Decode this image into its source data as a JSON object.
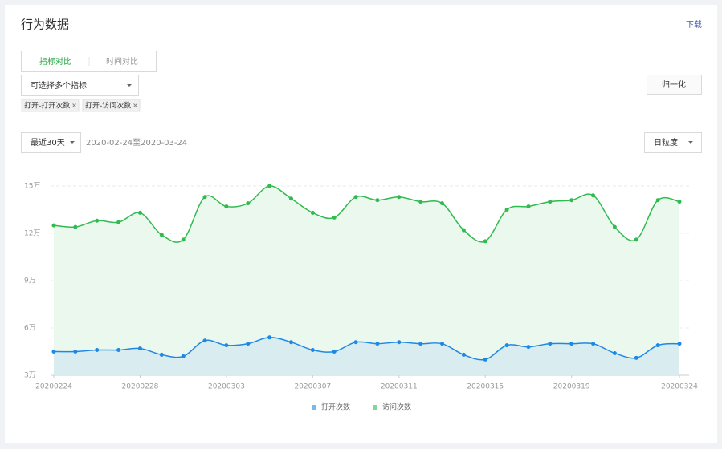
{
  "header": {
    "title": "行为数据",
    "download": "下载"
  },
  "tabs": [
    "指标对比",
    "时间对比"
  ],
  "metric_select": {
    "placeholder": "可选择多个指标",
    "tags": [
      "打开-打开次数",
      "打开-访问次数"
    ]
  },
  "normalize_button": "归一化",
  "range_select": "最近30天",
  "date_range": "2020-02-24至2020-03-24",
  "granularity_select": "日粒度",
  "chart_data": {
    "type": "line",
    "categories": [
      "20200224",
      null,
      null,
      null,
      "20200228",
      null,
      null,
      null,
      "20200303",
      null,
      null,
      null,
      "20200307",
      null,
      null,
      null,
      "20200311",
      null,
      null,
      null,
      "20200315",
      null,
      null,
      null,
      "20200319",
      null,
      null,
      null,
      null,
      "20200324"
    ],
    "series": [
      {
        "name": "打开次数",
        "color": "#1e88e5",
        "fill": "#d9edf0",
        "values": [
          4.5,
          4.5,
          4.6,
          4.6,
          4.7,
          4.3,
          4.2,
          5.2,
          4.9,
          5.0,
          5.4,
          5.1,
          4.6,
          4.5,
          5.1,
          5.0,
          5.1,
          5.0,
          5.0,
          4.3,
          4.0,
          4.9,
          4.8,
          5.0,
          5.0,
          5.0,
          4.4,
          4.1,
          4.9,
          5.0
        ]
      },
      {
        "name": "访问次数",
        "color": "#2fbb4f",
        "fill": "#ebf8ee",
        "values": [
          12.5,
          12.4,
          12.8,
          12.7,
          13.3,
          11.9,
          11.6,
          14.3,
          13.7,
          13.9,
          15.0,
          14.2,
          13.3,
          13.0,
          14.3,
          14.1,
          14.3,
          14.0,
          13.9,
          12.2,
          11.5,
          13.5,
          13.7,
          14.0,
          14.1,
          14.4,
          12.4,
          11.6,
          14.1,
          14.0
        ]
      }
    ],
    "ylim": [
      3,
      15
    ],
    "yticks": [
      {
        "value": 3,
        "label": "3万"
      },
      {
        "value": 6,
        "label": "6万"
      },
      {
        "value": 9,
        "label": "9万"
      },
      {
        "value": 12,
        "label": "12万"
      },
      {
        "value": 15,
        "label": "15万"
      }
    ],
    "grid": true,
    "smooth": true,
    "legend": "bottom"
  }
}
